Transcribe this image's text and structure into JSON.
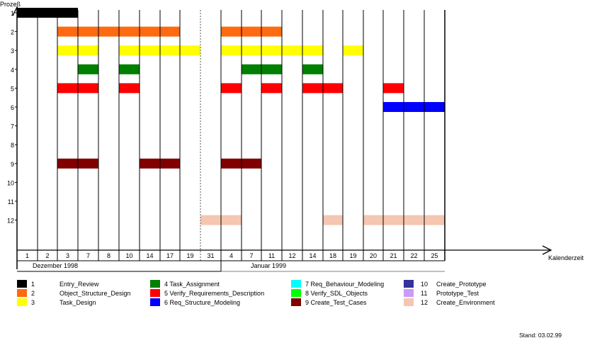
{
  "chart_data": {
    "type": "gantt",
    "ylabel": "Prozeß",
    "xlabel": "Kalenderzeit",
    "stand": "Stand: 03.02.99",
    "processes": [
      1,
      2,
      3,
      4,
      5,
      6,
      7,
      8,
      9,
      10,
      11,
      12
    ],
    "days": [
      "1",
      "2",
      "3",
      "7",
      "8",
      "10",
      "14",
      "17",
      "19",
      "31",
      "4",
      "7",
      "11",
      "12",
      "14",
      "18",
      "19",
      "20",
      "21",
      "22",
      "25"
    ],
    "months": [
      {
        "label": "Dezember 1998",
        "from": 0,
        "to": 10
      },
      {
        "label": "Januar 1999",
        "from": 10,
        "to": 21
      }
    ],
    "legend": [
      {
        "num": "1",
        "name": "Entry_Review",
        "color": "#000000"
      },
      {
        "num": "2",
        "name": "Object_Structure_Design",
        "color": "#ff6a10"
      },
      {
        "num": "3",
        "name": "Task_Design",
        "color": "#ffff00"
      },
      {
        "num": "4",
        "name": "4 Task_Assignment",
        "color": "#008000"
      },
      {
        "num": "5",
        "name": "5 Verify_Requirements_Description",
        "color": "#ff0000"
      },
      {
        "num": "6",
        "name": "6 Req_Structure_Modeling",
        "color": "#0000ff"
      },
      {
        "num": "7",
        "name": "7 Req_Behaviour_Modeling",
        "color": "#00ffff"
      },
      {
        "num": "8",
        "name": "8 Verify_SDL_Objects",
        "color": "#00ff00"
      },
      {
        "num": "9",
        "name": "9 Create_Test_Cases",
        "color": "#800000"
      },
      {
        "num": "10",
        "name": "Create_Prototype",
        "color": "#333399"
      },
      {
        "num": "11",
        "name": "Prototype_Test",
        "color": "#cc99ff"
      },
      {
        "num": "12",
        "name": "Create_Environment",
        "color": "#f5c6b0"
      }
    ],
    "bars": [
      {
        "process": 1,
        "start": 0,
        "end": 3
      },
      {
        "process": 2,
        "start": 2,
        "end": 8
      },
      {
        "process": 2,
        "start": 10,
        "end": 13
      },
      {
        "process": 3,
        "start": 2,
        "end": 4
      },
      {
        "process": 3,
        "start": 5,
        "end": 9
      },
      {
        "process": 3,
        "start": 10,
        "end": 15
      },
      {
        "process": 3,
        "start": 16,
        "end": 17
      },
      {
        "process": 4,
        "start": 3,
        "end": 4
      },
      {
        "process": 4,
        "start": 5,
        "end": 6
      },
      {
        "process": 4,
        "start": 11,
        "end": 13
      },
      {
        "process": 4,
        "start": 14,
        "end": 15
      },
      {
        "process": 5,
        "start": 2,
        "end": 4
      },
      {
        "process": 5,
        "start": 5,
        "end": 6
      },
      {
        "process": 5,
        "start": 10,
        "end": 11
      },
      {
        "process": 5,
        "start": 12,
        "end": 13
      },
      {
        "process": 5,
        "start": 14,
        "end": 16
      },
      {
        "process": 5,
        "start": 18,
        "end": 19
      },
      {
        "process": 6,
        "start": 18,
        "end": 21
      },
      {
        "process": 9,
        "start": 2,
        "end": 4
      },
      {
        "process": 9,
        "start": 6,
        "end": 8
      },
      {
        "process": 9,
        "start": 10,
        "end": 12
      },
      {
        "process": 12,
        "start": 9,
        "end": 11
      },
      {
        "process": 12,
        "start": 15,
        "end": 16
      },
      {
        "process": 12,
        "start": 17,
        "end": 21
      }
    ]
  }
}
